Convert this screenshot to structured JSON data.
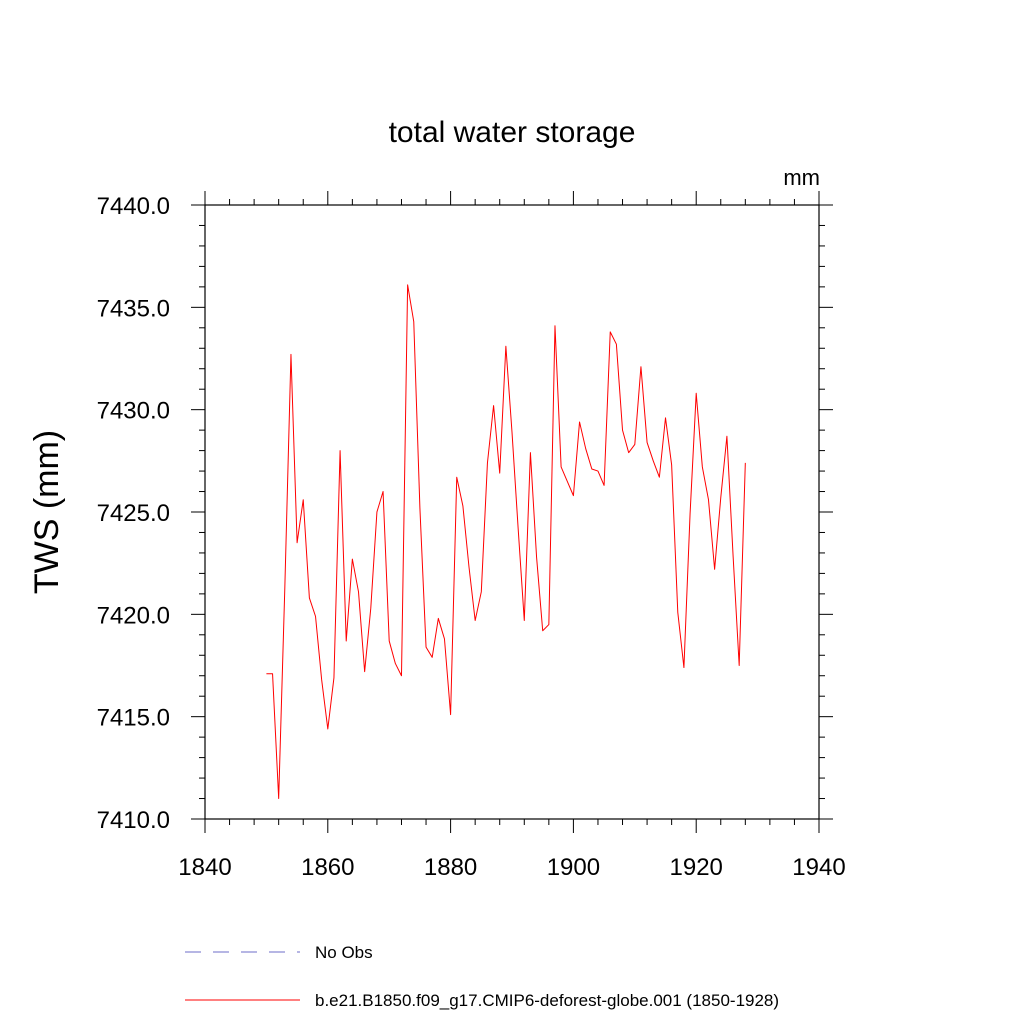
{
  "chart_data": {
    "type": "line",
    "title": "total water storage",
    "units_label": "mm",
    "xlabel": "",
    "ylabel": "TWS  (mm)",
    "xlim": [
      1840,
      1940
    ],
    "ylim": [
      7410.0,
      7440.0
    ],
    "x_ticks": [
      1840,
      1860,
      1880,
      1900,
      1920,
      1940
    ],
    "x_tick_labels": [
      "1840",
      "1860",
      "1880",
      "1900",
      "1920",
      "1940"
    ],
    "y_ticks": [
      7410.0,
      7415.0,
      7420.0,
      7425.0,
      7430.0,
      7435.0,
      7440.0
    ],
    "y_tick_labels": [
      "7410.0",
      "7415.0",
      "7420.0",
      "7425.0",
      "7430.0",
      "7435.0",
      "7440.0"
    ],
    "series": [
      {
        "name": "b.e21.B1850.f09_g17.CMIP6-deforest-globe.001 (1850-1928)",
        "color": "#ff0000",
        "x": [
          1850,
          1851,
          1852,
          1853,
          1854,
          1855,
          1856,
          1857,
          1858,
          1859,
          1860,
          1861,
          1862,
          1863,
          1864,
          1865,
          1866,
          1867,
          1868,
          1869,
          1870,
          1871,
          1872,
          1873,
          1874,
          1875,
          1876,
          1877,
          1878,
          1879,
          1880,
          1881,
          1882,
          1883,
          1884,
          1885,
          1886,
          1887,
          1888,
          1889,
          1890,
          1891,
          1892,
          1893,
          1894,
          1895,
          1896,
          1897,
          1898,
          1899,
          1900,
          1901,
          1902,
          1903,
          1904,
          1905,
          1906,
          1907,
          1908,
          1909,
          1910,
          1911,
          1912,
          1913,
          1914,
          1915,
          1916,
          1917,
          1918,
          1919,
          1920,
          1921,
          1922,
          1923,
          1924,
          1925,
          1926,
          1927,
          1928
        ],
        "values": [
          7417.1,
          7417.1,
          7411.0,
          7421.3,
          7432.7,
          7423.5,
          7425.6,
          7420.8,
          7419.9,
          7416.8,
          7414.4,
          7416.9,
          7428.0,
          7418.7,
          7422.7,
          7421.1,
          7417.2,
          7420.3,
          7425.0,
          7426.0,
          7418.7,
          7417.6,
          7417.0,
          7436.1,
          7434.3,
          7425.2,
          7418.4,
          7417.9,
          7419.8,
          7418.8,
          7415.1,
          7426.7,
          7425.3,
          7422.3,
          7419.7,
          7421.1,
          7427.4,
          7430.2,
          7426.9,
          7433.1,
          7428.9,
          7424.2,
          7419.7,
          7427.9,
          7422.8,
          7419.2,
          7419.5,
          7434.1,
          7427.2,
          7426.5,
          7425.8,
          7429.4,
          7428.1,
          7427.1,
          7427.0,
          7426.3,
          7433.8,
          7433.2,
          7429.0,
          7427.9,
          7428.3,
          7432.1,
          7428.4,
          7427.5,
          7426.7,
          7429.6,
          7427.3,
          7420.1,
          7417.4,
          7424.9,
          7430.8,
          7427.2,
          7425.6,
          7422.2,
          7425.7,
          7428.7,
          7422.9,
          7417.5,
          7427.4
        ]
      },
      {
        "name": "No Obs",
        "color": "#6d6dc8",
        "x": [],
        "values": []
      }
    ],
    "legend_position": "bottom-center",
    "grid": false
  }
}
